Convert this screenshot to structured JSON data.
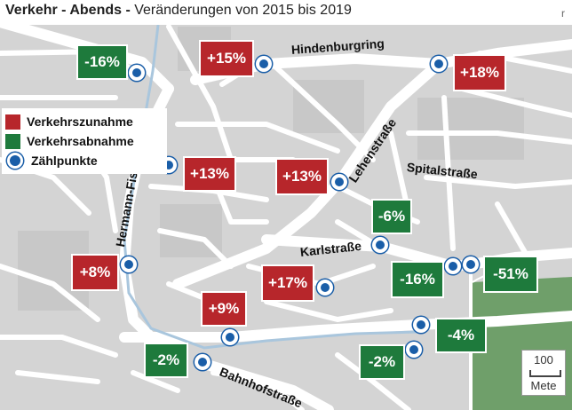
{
  "title": {
    "main": "Verkehr - Abends -",
    "sub": "Veränderungen von 2015 bis 2019",
    "corner": "r"
  },
  "legend": {
    "increase_label": "Verkehrszunahme",
    "decrease_label": "Verkehrsabnahme",
    "points_label": "Zählpunkte",
    "increase_color": "#b7262b",
    "decrease_color": "#1e7a3c",
    "point_color": "#1a5ea8"
  },
  "streets": {
    "hindenburgring": "Hindenburgring",
    "lehenstrasse": "Lehenstraße",
    "spitalstrasse": "Spitalstraße",
    "hermann": "Hermann-Fischer-Allee",
    "karlstrasse": "Karlstraße",
    "bahnhofstrasse": "Bahnhofstraße"
  },
  "changes": {
    "c1": "-16%",
    "c2": "+15%",
    "c3": "+18%",
    "c4": "+13%",
    "c5": "+13%",
    "c6": "-6%",
    "c7": "+8%",
    "c8": "+17%",
    "c9": "-16%",
    "c10": "-51%",
    "c11": "+9%",
    "c12": "-4%",
    "c13": "-2%",
    "c14": "-2%"
  },
  "scale": {
    "value": "100",
    "unit": "Mete"
  }
}
